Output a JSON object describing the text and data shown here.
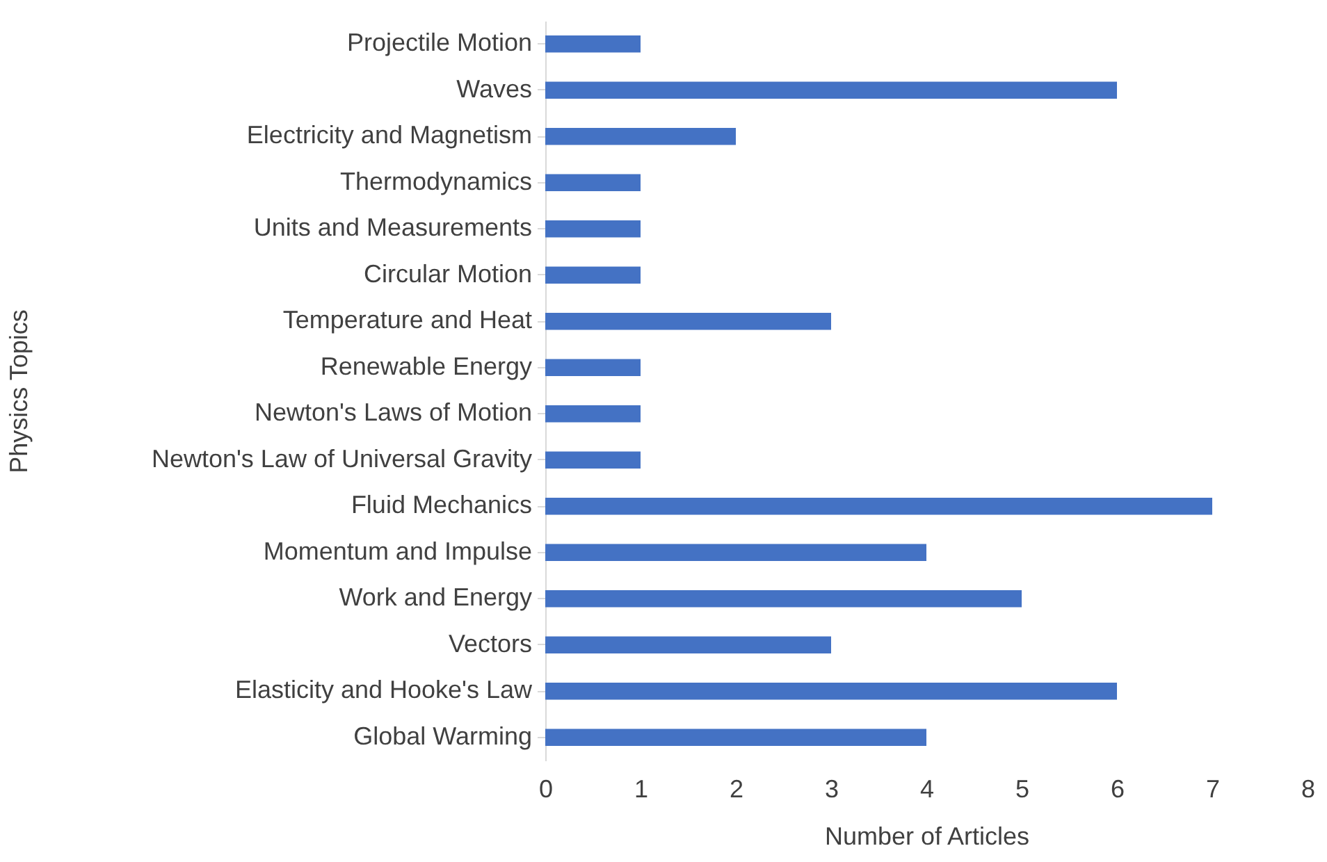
{
  "chart_data": {
    "type": "bar",
    "orientation": "horizontal",
    "xlabel": "Number of Articles",
    "ylabel": "Physics Topics",
    "categories": [
      "Projectile Motion",
      "Waves",
      "Electricity and Magnetism",
      "Thermodynamics",
      "Units and Measurements",
      "Circular Motion",
      "Temperature and Heat",
      "Renewable Energy",
      "Newton's Laws of Motion",
      "Newton's Law of Universal Gravity",
      "Fluid Mechanics",
      "Momentum and Impulse",
      "Work and Energy",
      "Vectors",
      "Elasticity and Hooke's Law",
      "Global Warming"
    ],
    "values": [
      1,
      6,
      2,
      1,
      1,
      1,
      3,
      1,
      1,
      1,
      7,
      4,
      5,
      3,
      6,
      4
    ],
    "color": "#4472c4",
    "xlim": [
      0,
      8
    ],
    "xticks": [
      0,
      1,
      2,
      3,
      4,
      5,
      6,
      7,
      8
    ],
    "grid": false
  }
}
